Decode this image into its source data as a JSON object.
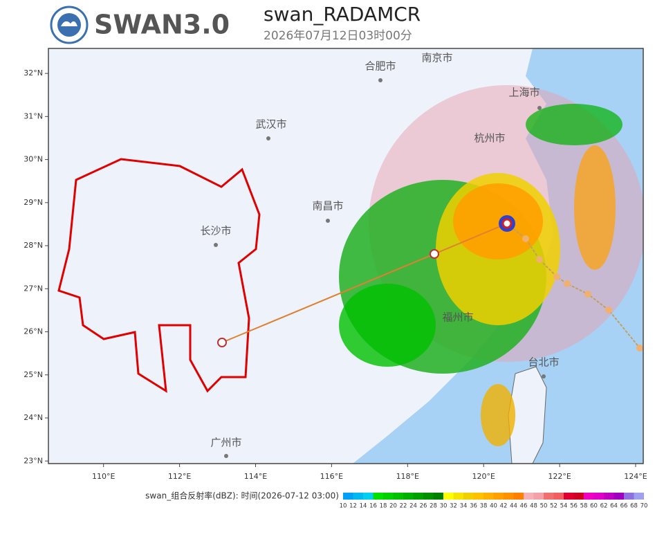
{
  "header": {
    "logo": "SWAN3.0",
    "title": "swan_RADAMCR",
    "subtitle": "2026年07月12日03时00分"
  },
  "map": {
    "lonlim": [
      108.55,
      124.2
    ],
    "latlim": [
      22.94,
      32.58
    ],
    "lat_ticks": [
      {
        "value": 23,
        "label": "23°N"
      },
      {
        "value": 24,
        "label": "24°N"
      },
      {
        "value": 25,
        "label": "25°N"
      },
      {
        "value": 26,
        "label": "26°N"
      },
      {
        "value": 27,
        "label": "27°N"
      },
      {
        "value": 28,
        "label": "28°N"
      },
      {
        "value": 29,
        "label": "29°N"
      },
      {
        "value": 30,
        "label": "30°N"
      },
      {
        "value": 31,
        "label": "31°N"
      },
      {
        "value": 32,
        "label": "32°N"
      }
    ],
    "lon_ticks": [
      {
        "value": 110,
        "label": "110°E"
      },
      {
        "value": 112,
        "label": "112°E"
      },
      {
        "value": 114,
        "label": "114°E"
      },
      {
        "value": 116,
        "label": "116°E"
      },
      {
        "value": 118,
        "label": "118°E"
      },
      {
        "value": 120,
        "label": "120°E"
      },
      {
        "value": 122,
        "label": "122°E"
      },
      {
        "value": 124,
        "label": "124°E"
      }
    ],
    "cities": [
      "合肥市",
      "南京市",
      "上海市",
      "武汉市",
      "杭州市",
      "南昌市",
      "长沙市",
      "福州市",
      "台北市",
      "广州市"
    ]
  },
  "legend": {
    "label": "swan_组合反射率(dBZ): 时间(2026-07-12 03:00)",
    "levels": [
      10,
      12,
      14,
      16,
      18,
      20,
      22,
      24,
      26,
      28,
      30,
      32,
      34,
      36,
      38,
      40,
      42,
      44,
      46,
      48,
      50,
      52,
      54,
      56,
      58,
      60,
      62,
      64,
      66,
      68,
      70
    ],
    "colors": [
      "#00a0f6",
      "#00b8f0",
      "#00d0f0",
      "#00e000",
      "#00d000",
      "#00c000",
      "#00b000",
      "#00a000",
      "#009000",
      "#008000",
      "#ffff00",
      "#f5e400",
      "#f0d000",
      "#ffc000",
      "#ffb000",
      "#ffa000",
      "#ff9000",
      "#ff8000",
      "#f5b0b8",
      "#f5a0a8",
      "#f07070",
      "#f06060",
      "#e00030",
      "#d00020",
      "#f000c0",
      "#e000c8",
      "#c000c0",
      "#a000c0",
      "#9070e0",
      "#a0a0f0"
    ]
  }
}
